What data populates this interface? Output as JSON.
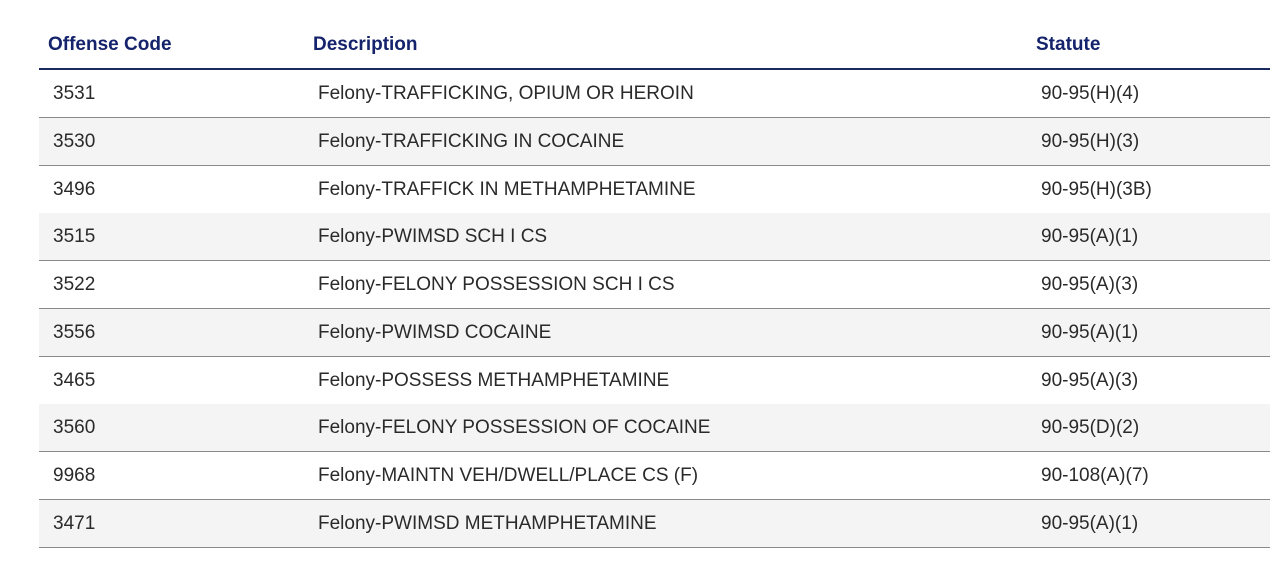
{
  "table": {
    "headers": [
      "Offense Code",
      "Description",
      "Statute"
    ],
    "rows": [
      [
        "3531",
        "Felony-TRAFFICKING, OPIUM OR HEROIN",
        "90-95(H)(4)"
      ],
      [
        "3530",
        "Felony-TRAFFICKING IN COCAINE",
        "90-95(H)(3)"
      ],
      [
        "3496",
        "Felony-TRAFFICK IN METHAMPHETAMINE",
        "90-95(H)(3B)"
      ],
      [
        "3515",
        "Felony-PWIMSD SCH I CS",
        "90-95(A)(1)"
      ],
      [
        "3522",
        "Felony-FELONY POSSESSION SCH I CS",
        "90-95(A)(3)"
      ],
      [
        "3556",
        "Felony-PWIMSD COCAINE",
        "90-95(A)(1)"
      ],
      [
        "3465",
        "Felony-POSSESS METHAMPHETAMINE",
        "90-95(A)(3)"
      ],
      [
        "3560",
        "Felony-FELONY POSSESSION OF COCAINE",
        "90-95(D)(2)"
      ],
      [
        "9968",
        "Felony-MAINTN VEH/DWELL/PLACE CS (F)",
        "90-108(A)(7)"
      ],
      [
        "3471",
        "Felony-PWIMSD METHAMPHETAMINE",
        "90-95(A)(1)"
      ]
    ]
  },
  "colors": {
    "header_text": "#14236b",
    "alt_row": "#f4f4f4"
  }
}
